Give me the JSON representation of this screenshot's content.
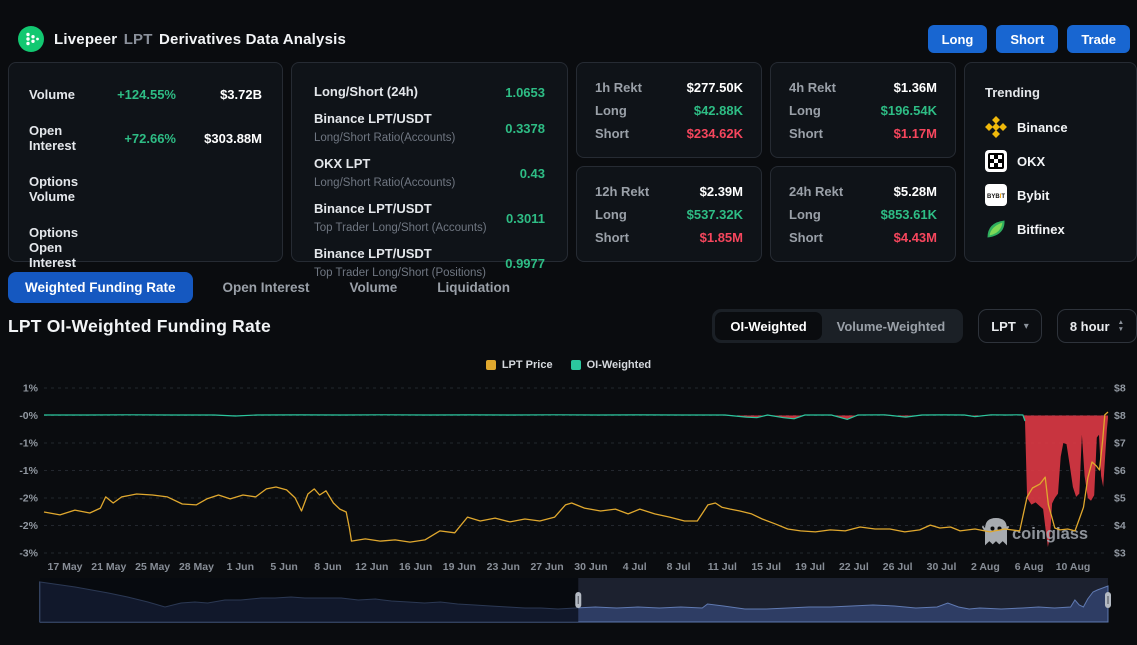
{
  "header": {
    "brand_main": "Livepeer",
    "brand_symbol": "LPT",
    "brand_rest": "Derivatives Data Analysis",
    "actions": {
      "long": "Long",
      "short": "Short",
      "trade": "Trade"
    }
  },
  "stats_panel": {
    "rows": [
      {
        "label": "Volume",
        "change": "+124.55%",
        "value": "$3.72B"
      },
      {
        "label": "Open Interest",
        "change": "+72.66%",
        "value": "$303.88M"
      },
      {
        "label": "Options Volume",
        "change": "",
        "value": ""
      },
      {
        "label": "Options Open Interest",
        "change": "",
        "value": ""
      }
    ]
  },
  "ratio_panel": {
    "rows": [
      {
        "title": "Long/Short (24h)",
        "subtitle": "",
        "value": "1.0653"
      },
      {
        "title": "Binance LPT/USDT",
        "subtitle": "Long/Short Ratio(Accounts)",
        "value": "0.3378"
      },
      {
        "title": "OKX LPT",
        "subtitle": "Long/Short Ratio(Accounts)",
        "value": "0.43"
      },
      {
        "title": "Binance LPT/USDT",
        "subtitle": "Top Trader Long/Short (Accounts)",
        "value": "0.3011"
      },
      {
        "title": "Binance LPT/USDT",
        "subtitle": "Top Trader Long/Short (Positions)",
        "value": "0.9977"
      }
    ]
  },
  "rekt_cards": [
    {
      "title": "1h Rekt",
      "total": "$277.50K",
      "long_label": "Long",
      "long": "$42.88K",
      "short_label": "Short",
      "short": "$234.62K"
    },
    {
      "title": "4h Rekt",
      "total": "$1.36M",
      "long_label": "Long",
      "long": "$196.54K",
      "short_label": "Short",
      "short": "$1.17M"
    },
    {
      "title": "12h Rekt",
      "total": "$2.39M",
      "long_label": "Long",
      "long": "$537.32K",
      "short_label": "Short",
      "short": "$1.85M"
    },
    {
      "title": "24h Rekt",
      "total": "$5.28M",
      "long_label": "Long",
      "long": "$853.61K",
      "short_label": "Short",
      "short": "$4.43M"
    }
  ],
  "trending": {
    "title": "Trending",
    "items": [
      {
        "name": "Binance"
      },
      {
        "name": "OKX"
      },
      {
        "name": "Bybit"
      },
      {
        "name": "Bitfinex"
      }
    ]
  },
  "tabs": [
    {
      "label": "Weighted Funding Rate",
      "active": true
    },
    {
      "label": "Open Interest",
      "active": false
    },
    {
      "label": "Volume",
      "active": false
    },
    {
      "label": "Liquidation",
      "active": false
    }
  ],
  "chart_header": {
    "title": "LPT OI-Weighted Funding Rate",
    "toggle_left": "OI-Weighted",
    "toggle_right": "Volume-Weighted",
    "toggle_active": "OI-Weighted",
    "symbol": "LPT",
    "interval": "8 hour"
  },
  "watermark": "coinglass",
  "chart_data": {
    "type": "line",
    "title": "LPT OI-Weighted Funding Rate",
    "x_labels": [
      "17 May",
      "21 May",
      "25 May",
      "28 May",
      "1 Jun",
      "5 Jun",
      "8 Jun",
      "12 Jun",
      "16 Jun",
      "19 Jun",
      "23 Jun",
      "27 Jun",
      "30 Jun",
      "4 Jul",
      "8 Jul",
      "11 Jul",
      "15 Jul",
      "19 Jul",
      "22 Jul",
      "26 Jul",
      "30 Jul",
      "2 Aug",
      "6 Aug",
      "10 Aug"
    ],
    "y_left": {
      "unit": "%",
      "labels": [
        "1%",
        "-0%",
        "-1%",
        "-1%",
        "-2%",
        "-2%",
        "-3%"
      ],
      "values": [
        0.5,
        0,
        -0.5,
        -1,
        -1.5,
        -2,
        -2.5
      ]
    },
    "y_right": {
      "unit": "$",
      "labels": [
        "$8",
        "$8",
        "$7",
        "$6",
        "$5",
        "$4",
        "$3"
      ],
      "max": 8.36,
      "min": 3.21
    },
    "grid": true,
    "legend_position": "top-center",
    "colors": {
      "grid": "#23272e",
      "axis_text": "#9198a1",
      "nav_area": "#223055",
      "nav_line": "#5b76ad",
      "nav_dim": "rgba(4,6,10,0.55)",
      "nav_highlight": "rgba(140,160,210,0.12)",
      "handle": "#b4bac3"
    },
    "series": [
      {
        "name": "LPT Price",
        "axis": "right",
        "color": "#e0a82e",
        "points": [
          [
            0,
            4.49
          ],
          [
            1.5,
            4.4
          ],
          [
            2.9,
            4.55
          ],
          [
            4.3,
            4.46
          ],
          [
            5.3,
            4.61
          ],
          [
            5.8,
            4.96
          ],
          [
            6.5,
            4.77
          ],
          [
            7.3,
            4.96
          ],
          [
            8.7,
            5.05
          ],
          [
            10.2,
            5.02
          ],
          [
            11.6,
            4.96
          ],
          [
            13,
            4.74
          ],
          [
            14.3,
            4.71
          ],
          [
            15.3,
            4.9
          ],
          [
            16.4,
            5.02
          ],
          [
            17.5,
            4.9
          ],
          [
            18.7,
            5.02
          ],
          [
            19.9,
            4.96
          ],
          [
            20.9,
            5.21
          ],
          [
            21.8,
            5.27
          ],
          [
            22.8,
            5.18
          ],
          [
            23.6,
            4.93
          ],
          [
            24.2,
            4.52
          ],
          [
            24.8,
            5.05
          ],
          [
            25.4,
            5.21
          ],
          [
            25.9,
            5.02
          ],
          [
            26.5,
            5.15
          ],
          [
            27.2,
            4.77
          ],
          [
            27.8,
            4.58
          ],
          [
            28.4,
            4.49
          ],
          [
            28.7,
            3.99
          ],
          [
            28.9,
            3.58
          ],
          [
            30.2,
            3.65
          ],
          [
            31.6,
            3.58
          ],
          [
            33,
            3.62
          ],
          [
            34.4,
            3.55
          ],
          [
            35.8,
            3.62
          ],
          [
            37.2,
            3.9
          ],
          [
            38.6,
            3.84
          ],
          [
            39.8,
            4.33
          ],
          [
            41,
            4.21
          ],
          [
            42.4,
            4.3
          ],
          [
            43.8,
            4.18
          ],
          [
            45.2,
            4.27
          ],
          [
            46.6,
            4.21
          ],
          [
            48,
            4.33
          ],
          [
            49,
            4.71
          ],
          [
            49.6,
            4.77
          ],
          [
            50.8,
            4.61
          ],
          [
            52.3,
            4.52
          ],
          [
            53.7,
            4.58
          ],
          [
            54.9,
            4.43
          ],
          [
            56,
            4.58
          ],
          [
            57.4,
            4.43
          ],
          [
            58.8,
            4.33
          ],
          [
            60.2,
            4.21
          ],
          [
            61.4,
            4.21
          ],
          [
            61.9,
            4.46
          ],
          [
            62.4,
            4.71
          ],
          [
            63.1,
            4.77
          ],
          [
            63.7,
            4.64
          ],
          [
            64.5,
            4.58
          ],
          [
            65.4,
            4.52
          ],
          [
            66.5,
            4.43
          ],
          [
            67.5,
            4.27
          ],
          [
            68.7,
            4.12
          ],
          [
            69.9,
            3.96
          ],
          [
            71.1,
            3.9
          ],
          [
            72.5,
            3.87
          ],
          [
            73.9,
            3.93
          ],
          [
            75.3,
            3.9
          ],
          [
            76.7,
            4.02
          ],
          [
            78.1,
            3.96
          ],
          [
            79.5,
            3.96
          ],
          [
            80.9,
            3.87
          ],
          [
            82.3,
            3.93
          ],
          [
            83.3,
            4.08
          ],
          [
            84.2,
            3.99
          ],
          [
            85.2,
            4.02
          ],
          [
            86.1,
            3.9
          ],
          [
            87.5,
            3.96
          ],
          [
            88.9,
            3.87
          ],
          [
            90.3,
            3.96
          ],
          [
            91.7,
            3.9
          ],
          [
            92.4,
            4.96
          ],
          [
            92.9,
            5.24
          ],
          [
            93.6,
            5.36
          ],
          [
            94.1,
            5.58
          ],
          [
            94.4,
            4.71
          ],
          [
            94.7,
            4.36
          ],
          [
            95,
            3.99
          ],
          [
            95.5,
            3.93
          ],
          [
            96.2,
            3.96
          ],
          [
            96.9,
            3.9
          ],
          [
            97.3,
            4.27
          ],
          [
            97.7,
            4.64
          ],
          [
            98.1,
            5.55
          ],
          [
            98.5,
            6.05
          ],
          [
            98.9,
            5.93
          ],
          [
            99.2,
            5.8
          ],
          [
            99.5,
            6.74
          ],
          [
            99.7,
            7.52
          ],
          [
            100,
            7.61
          ]
        ]
      },
      {
        "name": "OI-Weighted",
        "axis": "left",
        "color": "#2bc79e",
        "negative_color": "#d93843",
        "points": [
          [
            0,
            0.01
          ],
          [
            4,
            0.01
          ],
          [
            8,
            0.012
          ],
          [
            12,
            0.01
          ],
          [
            16,
            0.009
          ],
          [
            18,
            -0.01
          ],
          [
            20,
            0.01
          ],
          [
            24,
            0.011
          ],
          [
            28,
            0.01
          ],
          [
            32,
            0.012
          ],
          [
            36,
            0.01
          ],
          [
            40,
            0.011
          ],
          [
            44,
            0.01
          ],
          [
            48,
            0.012
          ],
          [
            52,
            0.01
          ],
          [
            56,
            0.011
          ],
          [
            60,
            0.01
          ],
          [
            64,
            0.01
          ],
          [
            66,
            -0.03
          ],
          [
            67,
            -0.04
          ],
          [
            68,
            0.01
          ],
          [
            69.5,
            -0.04
          ],
          [
            70.5,
            -0.06
          ],
          [
            71.5,
            0.01
          ],
          [
            74,
            0.01
          ],
          [
            75.5,
            -0.07
          ],
          [
            76.5,
            0.01
          ],
          [
            79,
            0.012
          ],
          [
            81,
            -0.03
          ],
          [
            82.5,
            0.01
          ],
          [
            84.5,
            0.011
          ],
          [
            86.5,
            0.01
          ],
          [
            87.5,
            -0.02
          ],
          [
            89,
            0.012
          ],
          [
            90.5,
            0.01
          ],
          [
            91.5,
            0.012
          ],
          [
            92,
            0.01
          ],
          [
            92.2,
            -0.1
          ],
          [
            92.4,
            -1.5
          ],
          [
            92.8,
            -1.62
          ],
          [
            93.2,
            -1.58
          ],
          [
            93.6,
            -1.65
          ],
          [
            93.9,
            -1.7
          ],
          [
            94.15,
            -2.1
          ],
          [
            94.35,
            -2.39
          ],
          [
            94.55,
            -2.2
          ],
          [
            94.75,
            -1.6
          ],
          [
            95,
            -1.5
          ],
          [
            95.3,
            -1.42
          ],
          [
            95.55,
            -0.75
          ],
          [
            95.8,
            -0.5
          ],
          [
            96.1,
            -0.52
          ],
          [
            96.4,
            -0.9
          ],
          [
            96.7,
            -1.3
          ],
          [
            97,
            -1.48
          ],
          [
            97.3,
            -1.42
          ],
          [
            97.55,
            -0.35
          ],
          [
            97.8,
            -1.1
          ],
          [
            98.1,
            -1.5
          ],
          [
            98.4,
            -1.55
          ],
          [
            98.7,
            -1.45
          ],
          [
            98.95,
            -0.4
          ],
          [
            99.15,
            -0.35
          ],
          [
            99.35,
            -1.1
          ],
          [
            99.55,
            -1.3
          ],
          [
            99.75,
            -0.7
          ],
          [
            99.9,
            -0.25
          ],
          [
            100,
            -0.05
          ]
        ]
      }
    ],
    "navigator": {
      "selection": [
        50.4,
        100
      ],
      "points": [
        [
          0,
          40
        ],
        [
          3.3,
          35
        ],
        [
          6.4,
          29
        ],
        [
          8.2,
          25
        ],
        [
          10.1,
          20
        ],
        [
          11.7,
          15
        ],
        [
          13.2,
          19
        ],
        [
          14.5,
          20
        ],
        [
          15.7,
          19
        ],
        [
          17.3,
          22
        ],
        [
          18.8,
          22
        ],
        [
          20.7,
          24
        ],
        [
          22,
          24
        ],
        [
          23.5,
          25
        ],
        [
          24.8,
          24
        ],
        [
          26.7,
          24
        ],
        [
          28.2,
          24
        ],
        [
          29.8,
          22
        ],
        [
          31.4,
          23
        ],
        [
          32.9,
          21
        ],
        [
          34.5,
          20
        ],
        [
          36,
          19
        ],
        [
          37.5,
          20
        ],
        [
          39.1,
          18
        ],
        [
          40.7,
          17
        ],
        [
          42.2,
          16
        ],
        [
          43.8,
          15
        ],
        [
          45.4,
          14
        ],
        [
          46.9,
          14
        ],
        [
          48.5,
          13
        ],
        [
          50.1,
          14
        ],
        [
          52,
          15
        ],
        [
          54,
          14
        ],
        [
          56,
          15
        ],
        [
          58,
          14
        ],
        [
          60,
          15
        ],
        [
          62,
          14
        ],
        [
          62.5,
          18
        ],
        [
          64,
          16
        ],
        [
          66,
          13
        ],
        [
          68,
          13
        ],
        [
          70,
          14
        ],
        [
          72,
          15
        ],
        [
          74,
          15
        ],
        [
          76,
          16
        ],
        [
          78,
          17
        ],
        [
          80,
          16
        ],
        [
          82,
          14
        ],
        [
          84,
          15
        ],
        [
          85,
          19
        ],
        [
          86,
          15
        ],
        [
          87,
          13
        ],
        [
          88,
          14
        ],
        [
          90,
          13
        ],
        [
          92,
          14
        ],
        [
          93.5,
          15
        ],
        [
          95,
          14
        ],
        [
          96.5,
          15
        ],
        [
          96.9,
          22
        ],
        [
          97.3,
          17
        ],
        [
          97.7,
          15
        ],
        [
          98.1,
          23
        ],
        [
          98.6,
          30
        ],
        [
          99,
          32
        ],
        [
          99.5,
          34
        ],
        [
          100,
          36
        ]
      ]
    }
  }
}
